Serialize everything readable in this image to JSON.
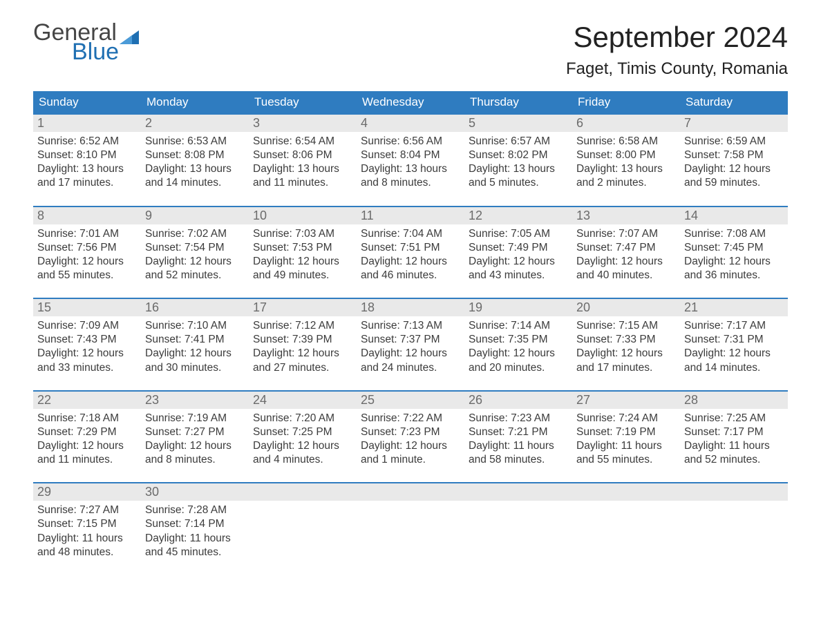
{
  "brand": {
    "line1": "General",
    "line2": "Blue",
    "color1": "#454545",
    "color2": "#1f6fb2"
  },
  "title": "September 2024",
  "location": "Faget, Timis County, Romania",
  "weekdays": [
    "Sunday",
    "Monday",
    "Tuesday",
    "Wednesday",
    "Thursday",
    "Friday",
    "Saturday"
  ],
  "colors": {
    "header_bg": "#2f7cc0",
    "header_fg": "#ffffff",
    "week_border": "#2f7cc0",
    "daynum_bg": "#e9e9e9",
    "daynum_fg": "#6b6b6b",
    "text": "#3b3b3b",
    "page_bg": "#ffffff"
  },
  "weeks": [
    [
      {
        "n": "1",
        "sunrise": "6:52 AM",
        "sunset": "8:10 PM",
        "daylight": "13 hours and 17 minutes."
      },
      {
        "n": "2",
        "sunrise": "6:53 AM",
        "sunset": "8:08 PM",
        "daylight": "13 hours and 14 minutes."
      },
      {
        "n": "3",
        "sunrise": "6:54 AM",
        "sunset": "8:06 PM",
        "daylight": "13 hours and 11 minutes."
      },
      {
        "n": "4",
        "sunrise": "6:56 AM",
        "sunset": "8:04 PM",
        "daylight": "13 hours and 8 minutes."
      },
      {
        "n": "5",
        "sunrise": "6:57 AM",
        "sunset": "8:02 PM",
        "daylight": "13 hours and 5 minutes."
      },
      {
        "n": "6",
        "sunrise": "6:58 AM",
        "sunset": "8:00 PM",
        "daylight": "13 hours and 2 minutes."
      },
      {
        "n": "7",
        "sunrise": "6:59 AM",
        "sunset": "7:58 PM",
        "daylight": "12 hours and 59 minutes."
      }
    ],
    [
      {
        "n": "8",
        "sunrise": "7:01 AM",
        "sunset": "7:56 PM",
        "daylight": "12 hours and 55 minutes."
      },
      {
        "n": "9",
        "sunrise": "7:02 AM",
        "sunset": "7:54 PM",
        "daylight": "12 hours and 52 minutes."
      },
      {
        "n": "10",
        "sunrise": "7:03 AM",
        "sunset": "7:53 PM",
        "daylight": "12 hours and 49 minutes."
      },
      {
        "n": "11",
        "sunrise": "7:04 AM",
        "sunset": "7:51 PM",
        "daylight": "12 hours and 46 minutes."
      },
      {
        "n": "12",
        "sunrise": "7:05 AM",
        "sunset": "7:49 PM",
        "daylight": "12 hours and 43 minutes."
      },
      {
        "n": "13",
        "sunrise": "7:07 AM",
        "sunset": "7:47 PM",
        "daylight": "12 hours and 40 minutes."
      },
      {
        "n": "14",
        "sunrise": "7:08 AM",
        "sunset": "7:45 PM",
        "daylight": "12 hours and 36 minutes."
      }
    ],
    [
      {
        "n": "15",
        "sunrise": "7:09 AM",
        "sunset": "7:43 PM",
        "daylight": "12 hours and 33 minutes."
      },
      {
        "n": "16",
        "sunrise": "7:10 AM",
        "sunset": "7:41 PM",
        "daylight": "12 hours and 30 minutes."
      },
      {
        "n": "17",
        "sunrise": "7:12 AM",
        "sunset": "7:39 PM",
        "daylight": "12 hours and 27 minutes."
      },
      {
        "n": "18",
        "sunrise": "7:13 AM",
        "sunset": "7:37 PM",
        "daylight": "12 hours and 24 minutes."
      },
      {
        "n": "19",
        "sunrise": "7:14 AM",
        "sunset": "7:35 PM",
        "daylight": "12 hours and 20 minutes."
      },
      {
        "n": "20",
        "sunrise": "7:15 AM",
        "sunset": "7:33 PM",
        "daylight": "12 hours and 17 minutes."
      },
      {
        "n": "21",
        "sunrise": "7:17 AM",
        "sunset": "7:31 PM",
        "daylight": "12 hours and 14 minutes."
      }
    ],
    [
      {
        "n": "22",
        "sunrise": "7:18 AM",
        "sunset": "7:29 PM",
        "daylight": "12 hours and 11 minutes."
      },
      {
        "n": "23",
        "sunrise": "7:19 AM",
        "sunset": "7:27 PM",
        "daylight": "12 hours and 8 minutes."
      },
      {
        "n": "24",
        "sunrise": "7:20 AM",
        "sunset": "7:25 PM",
        "daylight": "12 hours and 4 minutes."
      },
      {
        "n": "25",
        "sunrise": "7:22 AM",
        "sunset": "7:23 PM",
        "daylight": "12 hours and 1 minute."
      },
      {
        "n": "26",
        "sunrise": "7:23 AM",
        "sunset": "7:21 PM",
        "daylight": "11 hours and 58 minutes."
      },
      {
        "n": "27",
        "sunrise": "7:24 AM",
        "sunset": "7:19 PM",
        "daylight": "11 hours and 55 minutes."
      },
      {
        "n": "28",
        "sunrise": "7:25 AM",
        "sunset": "7:17 PM",
        "daylight": "11 hours and 52 minutes."
      }
    ],
    [
      {
        "n": "29",
        "sunrise": "7:27 AM",
        "sunset": "7:15 PM",
        "daylight": "11 hours and 48 minutes."
      },
      {
        "n": "30",
        "sunrise": "7:28 AM",
        "sunset": "7:14 PM",
        "daylight": "11 hours and 45 minutes."
      },
      null,
      null,
      null,
      null,
      null
    ]
  ],
  "labels": {
    "sunrise": "Sunrise:",
    "sunset": "Sunset:",
    "daylight": "Daylight:"
  }
}
